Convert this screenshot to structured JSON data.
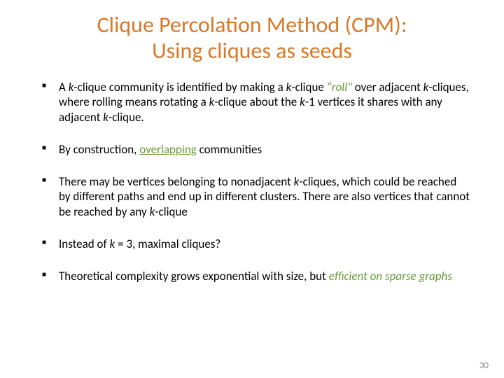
{
  "title": {
    "line1": "Clique Percolation Method (CPM):",
    "line2": "Using cliques as seeds",
    "color": "#d97828",
    "font_size": 32
  },
  "bullets": [
    {
      "runs": [
        {
          "text": "A "
        },
        {
          "text": "k",
          "italic": true
        },
        {
          "text": "-clique community is identified by making a "
        },
        {
          "text": "k",
          "italic": true
        },
        {
          "text": "-clique "
        },
        {
          "text": "“roll\"",
          "accent": true,
          "italic": true
        },
        {
          "text": " over adjacent "
        },
        {
          "text": "k",
          "italic": true
        },
        {
          "text": "-cliques, where rolling means rotating a "
        },
        {
          "text": "k",
          "italic": true
        },
        {
          "text": "-clique about the "
        },
        {
          "text": "k",
          "italic": true
        },
        {
          "text": "-1 vertices it shares with any adjacent "
        },
        {
          "text": "k",
          "italic": true
        },
        {
          "text": "-clique."
        }
      ]
    },
    {
      "runs": [
        {
          "text": "By construction, "
        },
        {
          "text": "overlapping",
          "accent": true,
          "underline": true
        },
        {
          "text": " communities"
        }
      ]
    },
    {
      "runs": [
        {
          "text": "There may be vertices belonging to nonadjacent "
        },
        {
          "text": "k",
          "italic": true
        },
        {
          "text": "-cliques, which could be reached by different  paths and end up in different clusters. There are also vertices that cannot be reached by any "
        },
        {
          "text": "k",
          "italic": true
        },
        {
          "text": "-clique"
        }
      ]
    },
    {
      "runs": [
        {
          "text": "Instead of "
        },
        {
          "text": "k",
          "italic": true
        },
        {
          "text": " = 3, maximal cliques?"
        }
      ]
    },
    {
      "runs": [
        {
          "text": "Theoretical complexity grows exponential with size, but "
        },
        {
          "text": "efficient on sparse graphs",
          "accent": true,
          "italic": true
        }
      ]
    }
  ],
  "page_number": "30",
  "colors": {
    "title": "#d97828",
    "accent": "#6a9a3a",
    "body_text": "#000000",
    "page_number": "#8a8a8a",
    "background": "#ffffff"
  },
  "typography": {
    "title_fontsize": 32,
    "body_fontsize": 17,
    "page_number_fontsize": 13,
    "font_family": "Calibri"
  }
}
